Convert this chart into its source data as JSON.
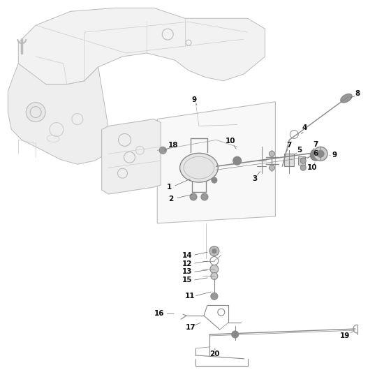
{
  "background_color": "#ffffff",
  "line_color": "#aaaaaa",
  "dark_line_color": "#888888",
  "label_color": "#111111",
  "fig_width": 5.6,
  "fig_height": 5.6,
  "dpi": 100
}
